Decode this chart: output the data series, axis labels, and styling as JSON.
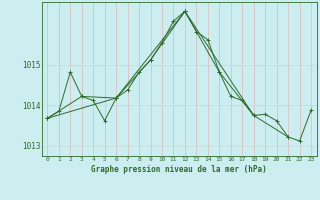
{
  "title": "Graphe pression niveau de la mer (hPa)",
  "bg_color": "#cceef0",
  "grid_color": "#aacccc",
  "line_color": "#2d6a2d",
  "xlim": [
    -0.5,
    23.5
  ],
  "ylim": [
    1012.75,
    1016.55
  ],
  "yticks": [
    1013,
    1014,
    1015
  ],
  "xticks": [
    0,
    1,
    2,
    3,
    4,
    5,
    6,
    7,
    8,
    9,
    10,
    11,
    12,
    13,
    14,
    15,
    16,
    17,
    18,
    19,
    20,
    21,
    22,
    23
  ],
  "series1_x": [
    0,
    1,
    2,
    3,
    4,
    5,
    6,
    7,
    8,
    9,
    10,
    11,
    12,
    13,
    14,
    15,
    16,
    17,
    18,
    19,
    20,
    21,
    22,
    23
  ],
  "series1_y": [
    1013.68,
    1013.85,
    1014.82,
    1014.22,
    1014.12,
    1013.62,
    1014.18,
    1014.38,
    1014.82,
    1015.12,
    1015.55,
    1016.08,
    1016.32,
    1015.82,
    1015.62,
    1014.82,
    1014.22,
    1014.12,
    1013.75,
    1013.78,
    1013.62,
    1013.22,
    1013.12,
    1013.88
  ],
  "series2_x": [
    0,
    3,
    6,
    9,
    12,
    15,
    18,
    21
  ],
  "series2_y": [
    1013.68,
    1014.22,
    1014.18,
    1015.12,
    1016.32,
    1014.82,
    1013.75,
    1013.22
  ],
  "series3_x": [
    0,
    6,
    12,
    18
  ],
  "series3_y": [
    1013.68,
    1014.18,
    1016.32,
    1013.75
  ]
}
